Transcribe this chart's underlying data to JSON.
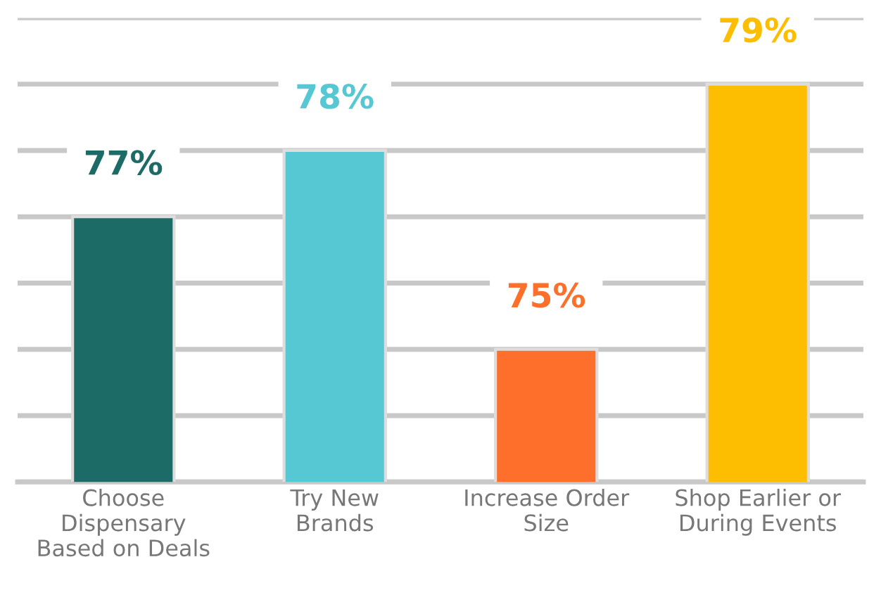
{
  "chart_data": {
    "type": "bar",
    "categories": [
      "Choose\nDispensary\nBased on Deals",
      "Try New\nBrands",
      "Increase Order\nSize",
      "Shop Earlier or\nDuring Events"
    ],
    "values": [
      77,
      78,
      75,
      79
    ],
    "colors": [
      "#1c6b66",
      "#55c8d4",
      "#ff6f2c",
      "#fdbd00"
    ],
    "value_labels": [
      "77%",
      "78%",
      "75%",
      "79%"
    ],
    "ylim": [
      73,
      80
    ],
    "yticks": [
      {
        "value": 73,
        "label": null
      },
      {
        "value": 74,
        "label": null
      },
      {
        "value": 75,
        "label": null
      },
      {
        "value": 76,
        "label": null
      },
      {
        "value": 77,
        "label": null
      },
      {
        "value": 78,
        "label": null
      },
      {
        "value": 79,
        "label": null
      },
      {
        "value": 80,
        "label": null
      }
    ],
    "grid": "y",
    "tick_labels": "x"
  }
}
